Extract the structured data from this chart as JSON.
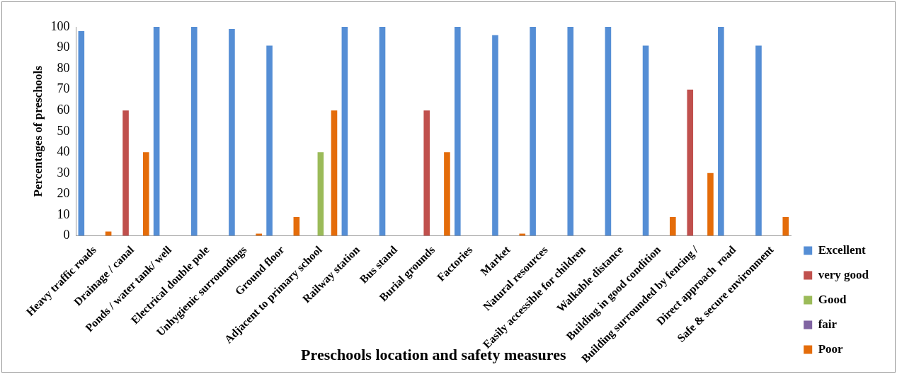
{
  "chart_data": {
    "type": "bar",
    "xlabel": "Preschools location and safety measures",
    "ylabel": "Percentages of preschools",
    "categories": [
      "Heavy traffic roads",
      "Drainage / canal",
      "Ponds / water tank/ well",
      "Electrical double pole",
      "Unhygienic surroundings",
      "Ground floor",
      "Adjacent to primary school",
      "Railway station",
      "Bus stand",
      "Burial grounds",
      "Factories",
      "Market",
      "Natural resources",
      "Easily accessible for children",
      "Walkable distance",
      "Building in good condition",
      "Building surrounded by fencing /",
      "Direct approach  road",
      "Safe & secure environment"
    ],
    "series": [
      {
        "name": "Excellent",
        "color": "#558ed5",
        "values": [
          98,
          0,
          100,
          100,
          99,
          91,
          0,
          100,
          100,
          0,
          100,
          96,
          100,
          100,
          100,
          91,
          0,
          100,
          91
        ]
      },
      {
        "name": "very good",
        "color": "#c0504d",
        "values": [
          0,
          60,
          0,
          0,
          0,
          0,
          0,
          0,
          0,
          60,
          0,
          0,
          0,
          0,
          0,
          0,
          70,
          0,
          0
        ]
      },
      {
        "name": "Good",
        "color": "#9bbb59",
        "values": [
          0,
          0,
          0,
          0,
          0,
          0,
          40,
          0,
          0,
          0,
          0,
          0,
          0,
          0,
          0,
          0,
          0,
          0,
          0
        ]
      },
      {
        "name": "fair",
        "color": "#8064a2",
        "values": [
          0,
          0,
          0,
          0,
          0,
          0,
          0,
          0,
          0,
          0,
          0,
          0,
          0,
          0,
          0,
          0,
          0,
          0,
          0
        ]
      },
      {
        "name": "Poor",
        "color": "#e46c0a",
        "values": [
          2,
          40,
          0,
          0,
          1,
          9,
          60,
          0,
          0,
          40,
          0,
          1,
          0,
          0,
          0,
          9,
          30,
          0,
          9
        ]
      }
    ],
    "ylim": [
      0,
      100
    ],
    "yticks": [
      0,
      10,
      20,
      30,
      40,
      50,
      60,
      70,
      80,
      90,
      100
    ],
    "grid": false,
    "legend": "bottom right"
  }
}
